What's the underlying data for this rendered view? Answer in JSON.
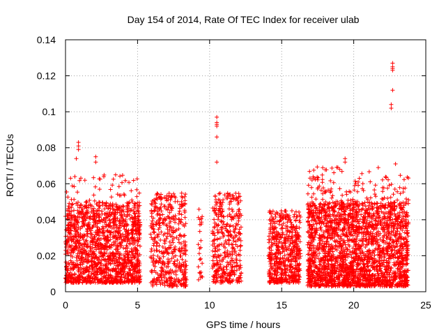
{
  "chart_data": {
    "type": "scatter",
    "title": "Day 154 of 2014, Rate Of TEC Index for receiver ulab",
    "xlabel": "GPS time / hours",
    "ylabel": "ROTI / TECUs",
    "xlim": [
      0,
      25
    ],
    "ylim": [
      0,
      0.14
    ],
    "x_ticks": [
      "0",
      "5",
      "10",
      "15",
      "20",
      "25"
    ],
    "y_ticks": [
      "0",
      "0.02",
      "0.04",
      "0.06",
      "0.08",
      "0.1",
      "0.12",
      "0.14"
    ],
    "x_tick_values": [
      0,
      5,
      10,
      15,
      20,
      25
    ],
    "y_tick_values": [
      0,
      0.02,
      0.04,
      0.06,
      0.08,
      0.1,
      0.12,
      0.14
    ],
    "grid": true,
    "marker": "+",
    "color": "#ff0000",
    "series": [
      {
        "name": "ROTI",
        "clusters": [
          {
            "x": [
              0.0,
              5.2
            ],
            "y": [
              0.005,
              0.05
            ],
            "n": 1400
          },
          {
            "x": [
              0.0,
              5.2
            ],
            "y": [
              0.03,
              0.065
            ],
            "n": 120
          },
          {
            "x": [
              5.9,
              8.4
            ],
            "y": [
              0.003,
              0.055
            ],
            "n": 450
          },
          {
            "x": [
              9.2,
              9.5
            ],
            "y": [
              0.004,
              0.048
            ],
            "n": 25
          },
          {
            "x": [
              10.2,
              12.2
            ],
            "y": [
              0.005,
              0.055
            ],
            "n": 380
          },
          {
            "x": [
              14.1,
              16.3
            ],
            "y": [
              0.005,
              0.045
            ],
            "n": 550
          },
          {
            "x": [
              16.8,
              23.8
            ],
            "y": [
              0.003,
              0.05
            ],
            "n": 2200
          },
          {
            "x": [
              16.8,
              23.8
            ],
            "y": [
              0.035,
              0.07
            ],
            "n": 220
          }
        ],
        "spikes": [
          {
            "x": 0.9,
            "y": 0.083
          },
          {
            "x": 0.9,
            "y": 0.081
          },
          {
            "x": 0.9,
            "y": 0.079
          },
          {
            "x": 0.75,
            "y": 0.074
          },
          {
            "x": 2.1,
            "y": 0.075
          },
          {
            "x": 2.1,
            "y": 0.072
          },
          {
            "x": 10.5,
            "y": 0.097
          },
          {
            "x": 10.5,
            "y": 0.094
          },
          {
            "x": 10.5,
            "y": 0.093
          },
          {
            "x": 10.5,
            "y": 0.092
          },
          {
            "x": 10.5,
            "y": 0.086
          },
          {
            "x": 10.5,
            "y": 0.072
          },
          {
            "x": 22.7,
            "y": 0.127
          },
          {
            "x": 22.7,
            "y": 0.125
          },
          {
            "x": 22.7,
            "y": 0.124
          },
          {
            "x": 22.7,
            "y": 0.123
          },
          {
            "x": 22.7,
            "y": 0.112
          },
          {
            "x": 22.6,
            "y": 0.104
          },
          {
            "x": 22.6,
            "y": 0.102
          },
          {
            "x": 19.4,
            "y": 0.074
          },
          {
            "x": 19.4,
            "y": 0.072
          },
          {
            "x": 18.9,
            "y": 0.069
          },
          {
            "x": 21.7,
            "y": 0.069
          },
          {
            "x": 22.9,
            "y": 0.071
          },
          {
            "x": 23.8,
            "y": 0.051
          },
          {
            "x": 12.1,
            "y": 0.053
          },
          {
            "x": 11.6,
            "y": 0.052
          }
        ]
      }
    ]
  }
}
